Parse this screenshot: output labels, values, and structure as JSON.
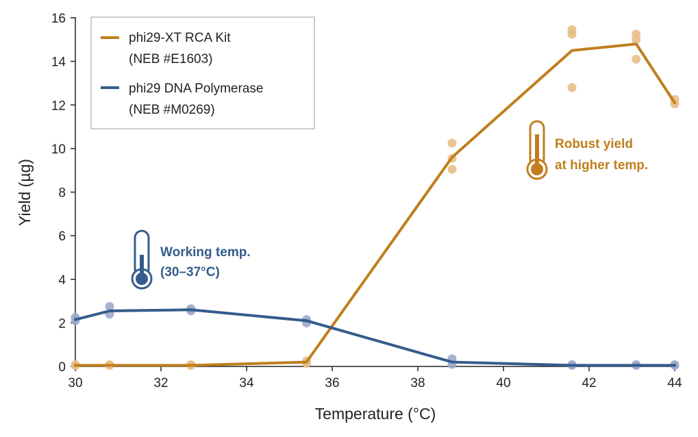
{
  "colors": {
    "xt_line": "#C07E1E",
    "xt_points": "#E8BE86",
    "pol_line": "#345C8C",
    "pol_points": "#9EA8CC",
    "axis": "#222222",
    "legend_border": "#999999"
  },
  "chart_data": {
    "type": "line",
    "title": "",
    "xlabel": "Temperature (°C)",
    "ylabel": "Yield (µg)",
    "xlim": [
      30,
      44
    ],
    "ylim": [
      0,
      16
    ],
    "x_ticks": [
      30,
      32,
      34,
      36,
      38,
      40,
      42,
      44
    ],
    "y_ticks": [
      0,
      2,
      4,
      6,
      8,
      10,
      12,
      14,
      16
    ],
    "legend_position": "top-left",
    "series": [
      {
        "name": "phi29-XT RCA Kit",
        "name_line2": "(NEB #E1603)",
        "color_key": "xt",
        "line": [
          [
            30.0,
            0.05
          ],
          [
            30.8,
            0.05
          ],
          [
            32.7,
            0.05
          ],
          [
            35.4,
            0.2
          ],
          [
            38.8,
            9.6
          ],
          [
            41.6,
            14.5
          ],
          [
            43.1,
            14.8
          ],
          [
            44.0,
            12.1
          ]
        ],
        "replicates": [
          [
            30.0,
            0.05
          ],
          [
            30.0,
            0.08
          ],
          [
            30.8,
            0.05
          ],
          [
            30.8,
            0.08
          ],
          [
            32.7,
            0.05
          ],
          [
            32.7,
            0.08
          ],
          [
            35.4,
            0.15
          ],
          [
            35.4,
            0.25
          ],
          [
            38.8,
            10.25
          ],
          [
            38.8,
            9.55
          ],
          [
            38.8,
            9.05
          ],
          [
            41.6,
            15.45
          ],
          [
            41.6,
            15.25
          ],
          [
            41.6,
            12.8
          ],
          [
            43.1,
            15.25
          ],
          [
            43.1,
            15.0
          ],
          [
            43.1,
            14.1
          ],
          [
            44.0,
            12.25
          ],
          [
            44.0,
            12.05
          ]
        ]
      },
      {
        "name": "phi29 DNA Polymerase",
        "name_line2": "(NEB #M0269)",
        "color_key": "pol",
        "line": [
          [
            30.0,
            2.15
          ],
          [
            30.8,
            2.55
          ],
          [
            32.7,
            2.6
          ],
          [
            35.4,
            2.1
          ],
          [
            38.8,
            0.2
          ],
          [
            41.6,
            0.05
          ],
          [
            43.1,
            0.05
          ],
          [
            44.0,
            0.05
          ]
        ],
        "replicates": [
          [
            30.0,
            2.1
          ],
          [
            30.0,
            2.25
          ],
          [
            30.8,
            2.75
          ],
          [
            30.8,
            2.4
          ],
          [
            32.7,
            2.65
          ],
          [
            32.7,
            2.55
          ],
          [
            35.4,
            2.15
          ],
          [
            35.4,
            2.0
          ],
          [
            38.8,
            0.35
          ],
          [
            38.8,
            0.1
          ],
          [
            41.6,
            0.05
          ],
          [
            41.6,
            0.08
          ],
          [
            43.1,
            0.05
          ],
          [
            43.1,
            0.08
          ],
          [
            44.0,
            0.05
          ],
          [
            44.0,
            0.08
          ]
        ]
      }
    ],
    "annotations": [
      {
        "id": "working",
        "line1": "Working temp.",
        "line2": "(30–37°C)",
        "color_key": "pol"
      },
      {
        "id": "robust",
        "line1": "Robust yield",
        "line2": "at higher temp.",
        "color_key": "xt"
      }
    ]
  }
}
